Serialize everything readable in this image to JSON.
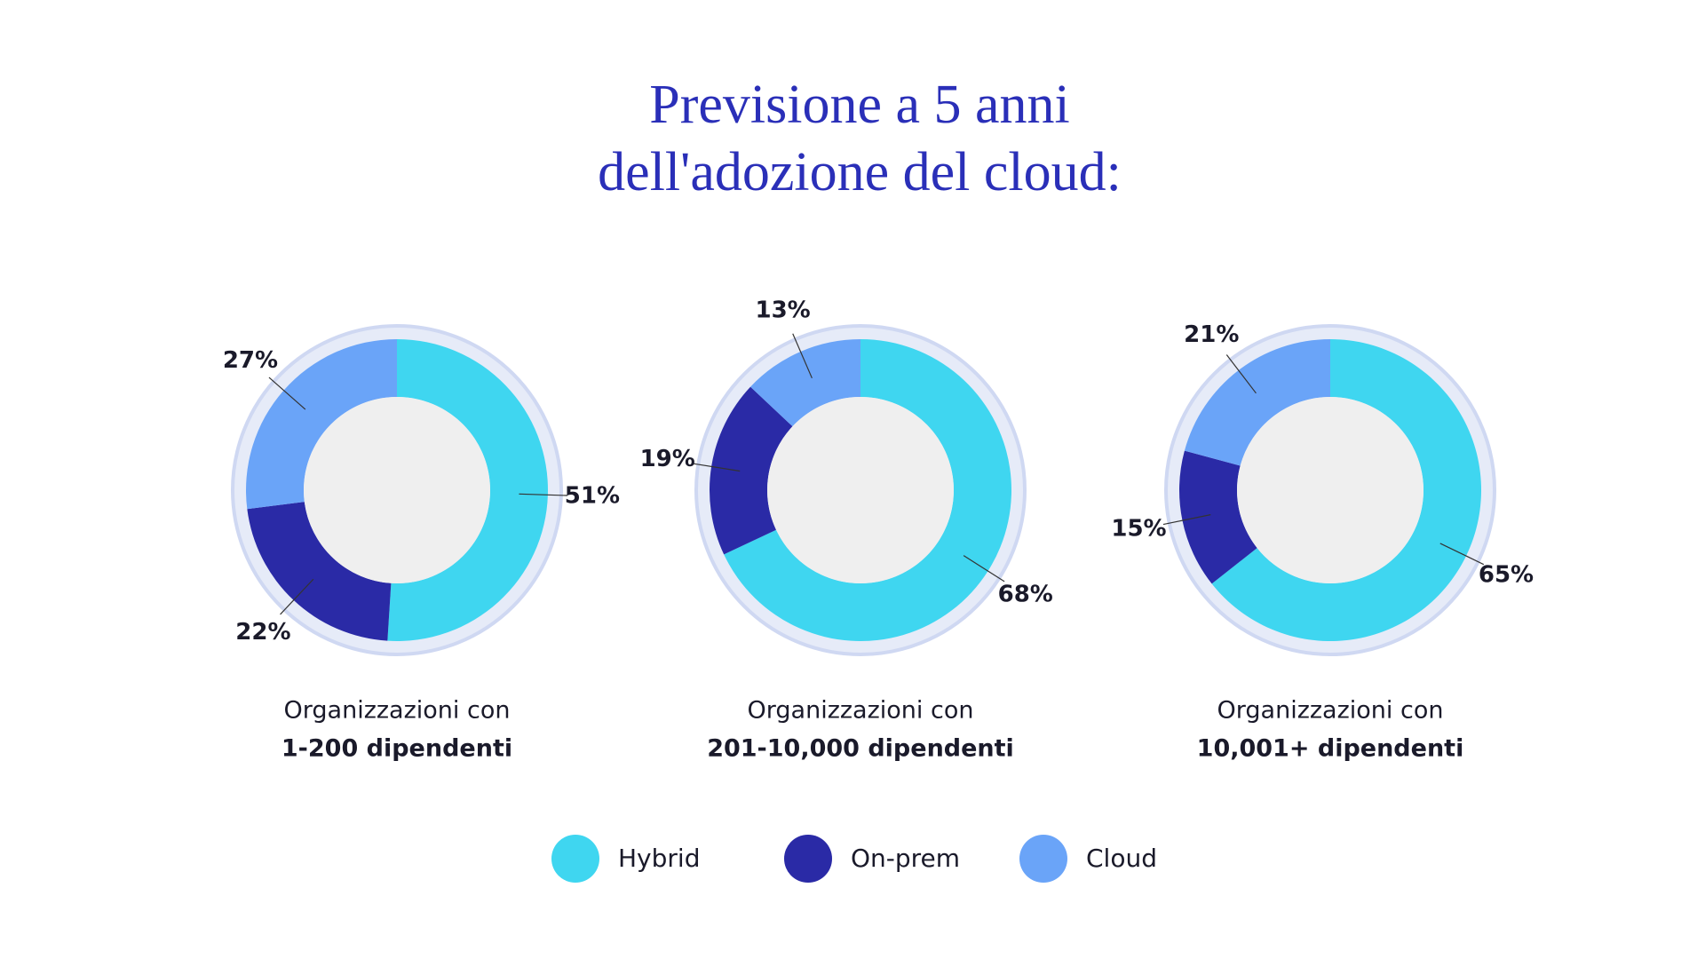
{
  "title": [
    "Previsione a 5 anni",
    "dell'adozione del cloud:"
  ],
  "chart_data": [
    {
      "type": "donut",
      "subtitle": "Organizzazioni con",
      "label": "1-200 dipendenti",
      "categories": [
        "Hybrid",
        "On-prem",
        "Cloud"
      ],
      "values": [
        51,
        22,
        27
      ],
      "value_labels": [
        "51%",
        "22%",
        "27%"
      ],
      "colors": [
        "#3fd6f0",
        "#2a2aa6",
        "#6aa4f8"
      ]
    },
    {
      "type": "donut",
      "subtitle": "Organizzazioni con",
      "label": "201-10,000 dipendenti",
      "categories": [
        "Hybrid",
        "On-prem",
        "Cloud"
      ],
      "values": [
        68,
        19,
        13
      ],
      "value_labels": [
        "68%",
        "19%",
        "13%"
      ],
      "colors": [
        "#3fd6f0",
        "#2a2aa6",
        "#6aa4f8"
      ]
    },
    {
      "type": "donut",
      "subtitle": "Organizzazioni con",
      "label": "10,001+ dipendenti",
      "categories": [
        "Hybrid",
        "On-prem",
        "Cloud"
      ],
      "values": [
        65,
        15,
        21
      ],
      "value_labels": [
        "65%",
        "15%",
        "21%"
      ],
      "colors": [
        "#3fd6f0",
        "#2a2aa6",
        "#6aa4f8"
      ]
    }
  ]
}
